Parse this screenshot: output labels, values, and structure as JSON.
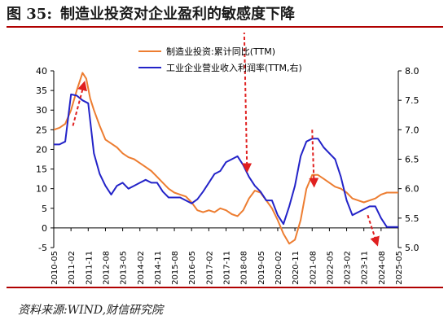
{
  "figure": {
    "title_prefix": "图 35:",
    "title": "制造业投资对企业盈利的敏感度下降",
    "source": "资料来源:WIND,财信研究院"
  },
  "colors": {
    "manufacturing": "#ed7d31",
    "profit": "#2323c8",
    "arrow": "#e02020",
    "axis": "#000000",
    "rule": "#b00000"
  },
  "chart_data": {
    "type": "line",
    "x_ticks": [
      "2010-05",
      "2011-02",
      "2011-11",
      "2012-08",
      "2013-05",
      "2014-02",
      "2014-11",
      "2015-08",
      "2016-05",
      "2017-02",
      "2017-11",
      "2018-08",
      "2019-05",
      "2020-02",
      "2020-11",
      "2021-08",
      "2022-05",
      "2023-02",
      "2023-11",
      "2024-08",
      "2025-05"
    ],
    "x_range": [
      "2010-05",
      "2025-05"
    ],
    "y_left": {
      "min": -5,
      "max": 40,
      "ticks": [
        -5,
        0,
        5,
        10,
        15,
        20,
        25,
        30,
        35,
        40
      ]
    },
    "y_right": {
      "min": 5.0,
      "max": 8.0,
      "ticks": [
        "5.0",
        "5.5",
        "6.0",
        "6.5",
        "7.0",
        "7.5",
        "8.0"
      ]
    },
    "legend_position": "top-right",
    "series": [
      {
        "name": "制造业投资:累计同比(TTM)",
        "axis": "left",
        "x": [
          "2010-05",
          "2010-08",
          "2010-11",
          "2011-02",
          "2011-05",
          "2011-08",
          "2011-10",
          "2011-12",
          "2012-02",
          "2012-05",
          "2012-08",
          "2012-11",
          "2013-02",
          "2013-05",
          "2013-08",
          "2013-11",
          "2014-02",
          "2014-05",
          "2014-08",
          "2014-11",
          "2015-02",
          "2015-05",
          "2015-08",
          "2015-11",
          "2016-02",
          "2016-05",
          "2016-08",
          "2016-11",
          "2017-02",
          "2017-05",
          "2017-08",
          "2017-11",
          "2018-02",
          "2018-05",
          "2018-08",
          "2018-11",
          "2019-02",
          "2019-05",
          "2019-08",
          "2019-11",
          "2020-02",
          "2020-05",
          "2020-08",
          "2020-11",
          "2021-02",
          "2021-05",
          "2021-08",
          "2021-11",
          "2022-02",
          "2022-05",
          "2022-08",
          "2022-11",
          "2023-02",
          "2023-05",
          "2023-08",
          "2023-11",
          "2024-02",
          "2024-05",
          "2024-08",
          "2024-11",
          "2025-02",
          "2025-05"
        ],
        "y": [
          25.0,
          25.5,
          26.5,
          30.0,
          35.0,
          39.5,
          38.0,
          33.0,
          30.0,
          26.0,
          22.5,
          21.5,
          20.5,
          19.0,
          18.0,
          17.5,
          16.5,
          15.5,
          14.5,
          13.0,
          11.5,
          10.0,
          9.0,
          8.5,
          8.0,
          6.5,
          4.5,
          4.0,
          4.5,
          4.0,
          5.0,
          4.5,
          3.5,
          3.0,
          4.5,
          7.5,
          9.5,
          9.0,
          7.0,
          5.0,
          2.0,
          -1.5,
          -4.0,
          -3.0,
          2.0,
          10.0,
          13.5,
          13.5,
          12.5,
          11.5,
          10.5,
          10.0,
          9.0,
          7.5,
          7.0,
          6.5,
          7.0,
          7.5,
          8.5,
          9.0,
          9.0,
          9.0
        ]
      },
      {
        "name": "工业企业营业收入利润率(TTM,右)",
        "axis": "right",
        "x": [
          "2010-05",
          "2010-08",
          "2010-11",
          "2011-02",
          "2011-05",
          "2011-08",
          "2011-11",
          "2012-02",
          "2012-05",
          "2012-08",
          "2012-11",
          "2013-02",
          "2013-05",
          "2013-08",
          "2013-11",
          "2014-02",
          "2014-05",
          "2014-08",
          "2014-11",
          "2015-02",
          "2015-05",
          "2015-08",
          "2015-11",
          "2016-02",
          "2016-05",
          "2016-08",
          "2016-11",
          "2017-02",
          "2017-05",
          "2017-08",
          "2017-11",
          "2018-02",
          "2018-05",
          "2018-08",
          "2018-11",
          "2019-02",
          "2019-05",
          "2019-08",
          "2019-11",
          "2020-02",
          "2020-05",
          "2020-08",
          "2020-11",
          "2021-02",
          "2021-05",
          "2021-08",
          "2021-11",
          "2022-02",
          "2022-05",
          "2022-08",
          "2022-11",
          "2023-02",
          "2023-05",
          "2023-08",
          "2023-11",
          "2024-02",
          "2024-05",
          "2024-08",
          "2024-11",
          "2025-02",
          "2025-05"
        ],
        "y": [
          6.75,
          6.75,
          6.8,
          7.6,
          7.58,
          7.5,
          7.45,
          6.6,
          6.25,
          6.05,
          5.9,
          6.05,
          6.1,
          6.0,
          6.05,
          6.1,
          6.15,
          6.1,
          6.1,
          5.95,
          5.85,
          5.85,
          5.85,
          5.8,
          5.75,
          5.82,
          5.95,
          6.1,
          6.25,
          6.3,
          6.45,
          6.5,
          6.55,
          6.4,
          6.2,
          6.05,
          5.95,
          5.8,
          5.8,
          5.55,
          5.4,
          5.7,
          6.05,
          6.55,
          6.8,
          6.85,
          6.85,
          6.7,
          6.6,
          6.5,
          6.2,
          5.8,
          5.55,
          5.6,
          5.65,
          5.7,
          5.7,
          5.5,
          5.35,
          5.35,
          5.35
        ]
      }
    ],
    "trend_arrows": [
      {
        "from": [
          "2011-03",
          26.0
        ],
        "to": [
          "2011-09",
          37.0
        ],
        "axis": "left"
      },
      {
        "from": [
          "2018-07",
          11.0
        ],
        "to": [
          "2018-10",
          6.3
        ],
        "axis": "right"
      },
      {
        "from": [
          "2021-08",
          7.0
        ],
        "to": [
          "2021-09",
          6.05
        ],
        "axis": "right"
      },
      {
        "from": [
          "2024-01",
          5.55
        ],
        "to": [
          "2024-06",
          5.05
        ],
        "axis": "right"
      }
    ]
  }
}
